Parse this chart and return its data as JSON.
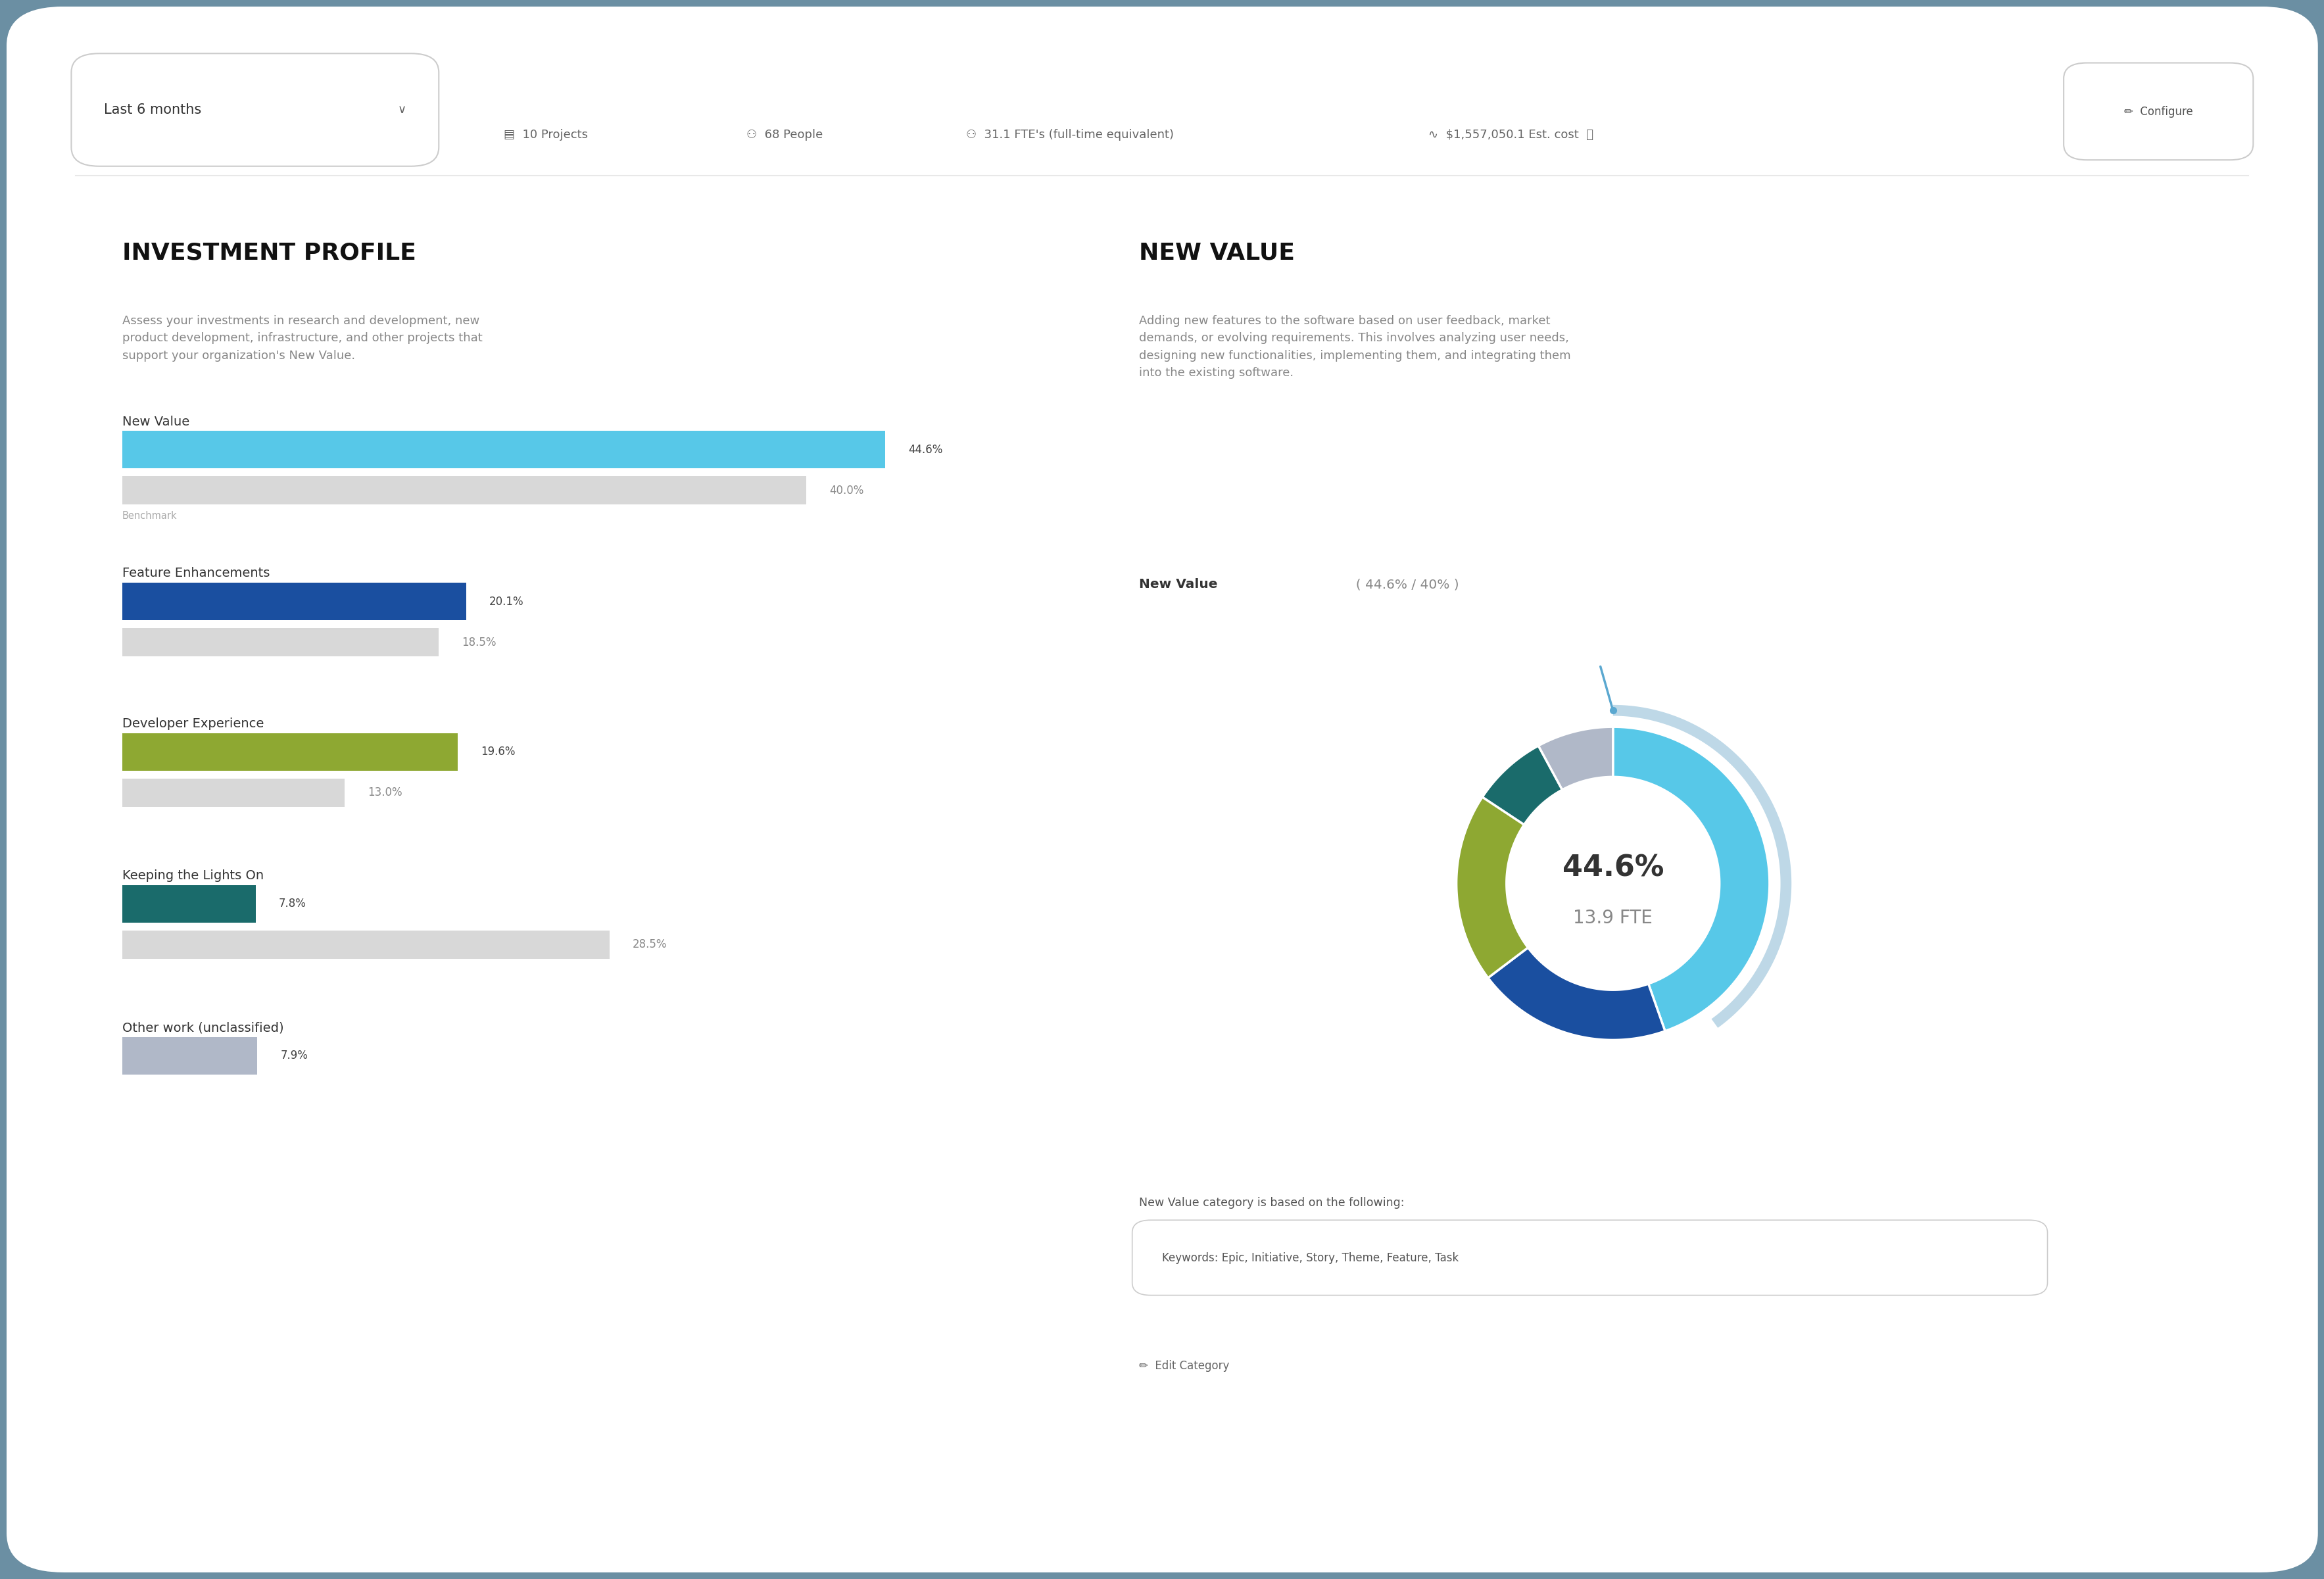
{
  "bg_outer": "#6b8fa3",
  "bg_card": "#ffffff",
  "dropdown_text": "Last 6 months",
  "header_items_text": [
    "10 Projects",
    "68 People",
    "31.1 FTE's (full-time equivalent)",
    "$1,557,050.1 Est. cost"
  ],
  "configure_text": "✏  Configure",
  "left_title": "INVESTMENT PROFILE",
  "left_desc": "Assess your investments in research and development, new\nproduct development, infrastructure, and other projects that\nsupport your organization's New Value.",
  "right_title": "NEW VALUE",
  "right_desc": "Adding new features to the software based on user feedback, market\ndemands, or evolving requirements. This involves analyzing user needs,\ndesigning new functionalities, implementing them, and integrating them\ninto the existing software.",
  "bars": [
    {
      "label": "New Value",
      "value": 44.6,
      "benchmark": 40.0,
      "bench_label": "Benchmark",
      "color": "#57c8e8",
      "bench_color": "#d8d8d8"
    },
    {
      "label": "Feature Enhancements",
      "value": 20.1,
      "benchmark": 18.5,
      "bench_label": null,
      "color": "#1a4fa0",
      "bench_color": "#d8d8d8"
    },
    {
      "label": "Developer Experience",
      "value": 19.6,
      "benchmark": 13.0,
      "bench_label": null,
      "color": "#8ea832",
      "bench_color": "#d8d8d8"
    },
    {
      "label": "Keeping the Lights On",
      "value": 7.8,
      "benchmark": 28.5,
      "bench_label": null,
      "color": "#1a6b6b",
      "bench_color": "#d8d8d8"
    },
    {
      "label": "Other work (unclassified)",
      "value": 7.9,
      "benchmark": null,
      "bench_label": null,
      "color": "#b0b8c8",
      "bench_color": null
    }
  ],
  "bar_max": 50.0,
  "donut_pct": "44.6%",
  "donut_fte": "13.9 FTE",
  "donut_benchmark": 40.0,
  "donut_segments": [
    {
      "value": 44.6,
      "color": "#57c8e8"
    },
    {
      "value": 20.1,
      "color": "#1a4fa0"
    },
    {
      "value": 19.6,
      "color": "#8ea832"
    },
    {
      "value": 7.8,
      "color": "#1a6b6b"
    },
    {
      "value": 7.9,
      "color": "#b0b8c8"
    }
  ],
  "new_value_label_bold": "New Value",
  "new_value_label_light": "  ( 44.6% / 40% )",
  "category_note": "New Value category is based on the following:",
  "keywords_text": "Keywords: Epic, Initiative, Story, Theme, Feature, Task",
  "edit_category_text": "✏  Edit Category"
}
